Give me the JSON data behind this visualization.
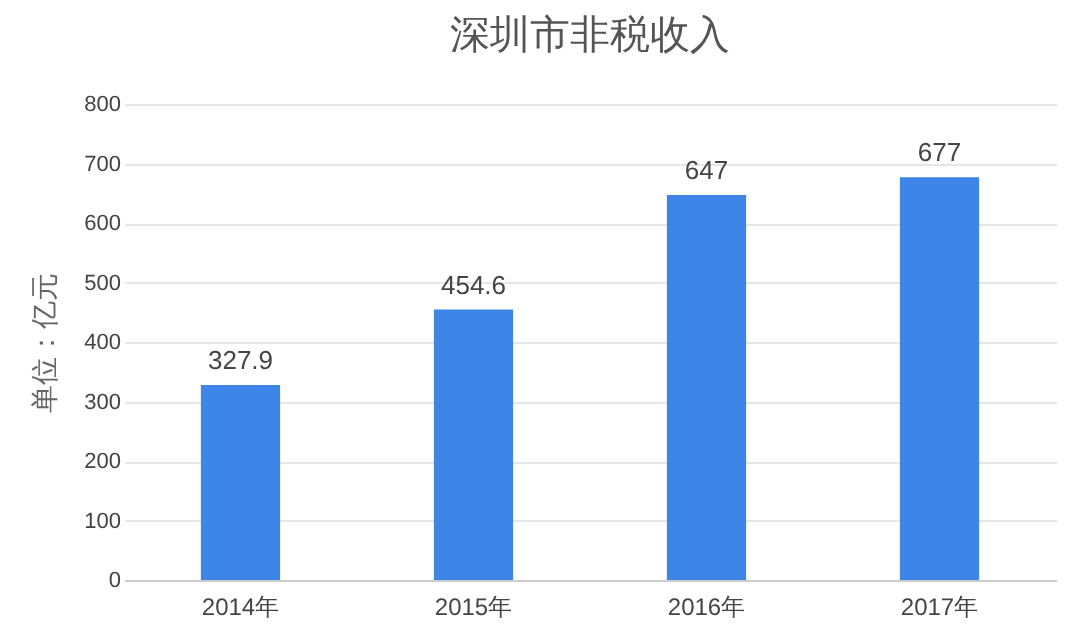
{
  "chart_data": {
    "type": "bar",
    "title": "深圳市非税收入",
    "ylabel": "单位：亿元",
    "categories": [
      "2014年",
      "2015年",
      "2016年",
      "2017年"
    ],
    "values": [
      327.9,
      454.6,
      647,
      677
    ],
    "color": "#3d85e6",
    "ylim": [
      0,
      800
    ],
    "yticks": [
      0,
      100,
      200,
      300,
      400,
      500,
      600,
      700,
      800
    ],
    "grid": "y",
    "data_labels": true
  }
}
